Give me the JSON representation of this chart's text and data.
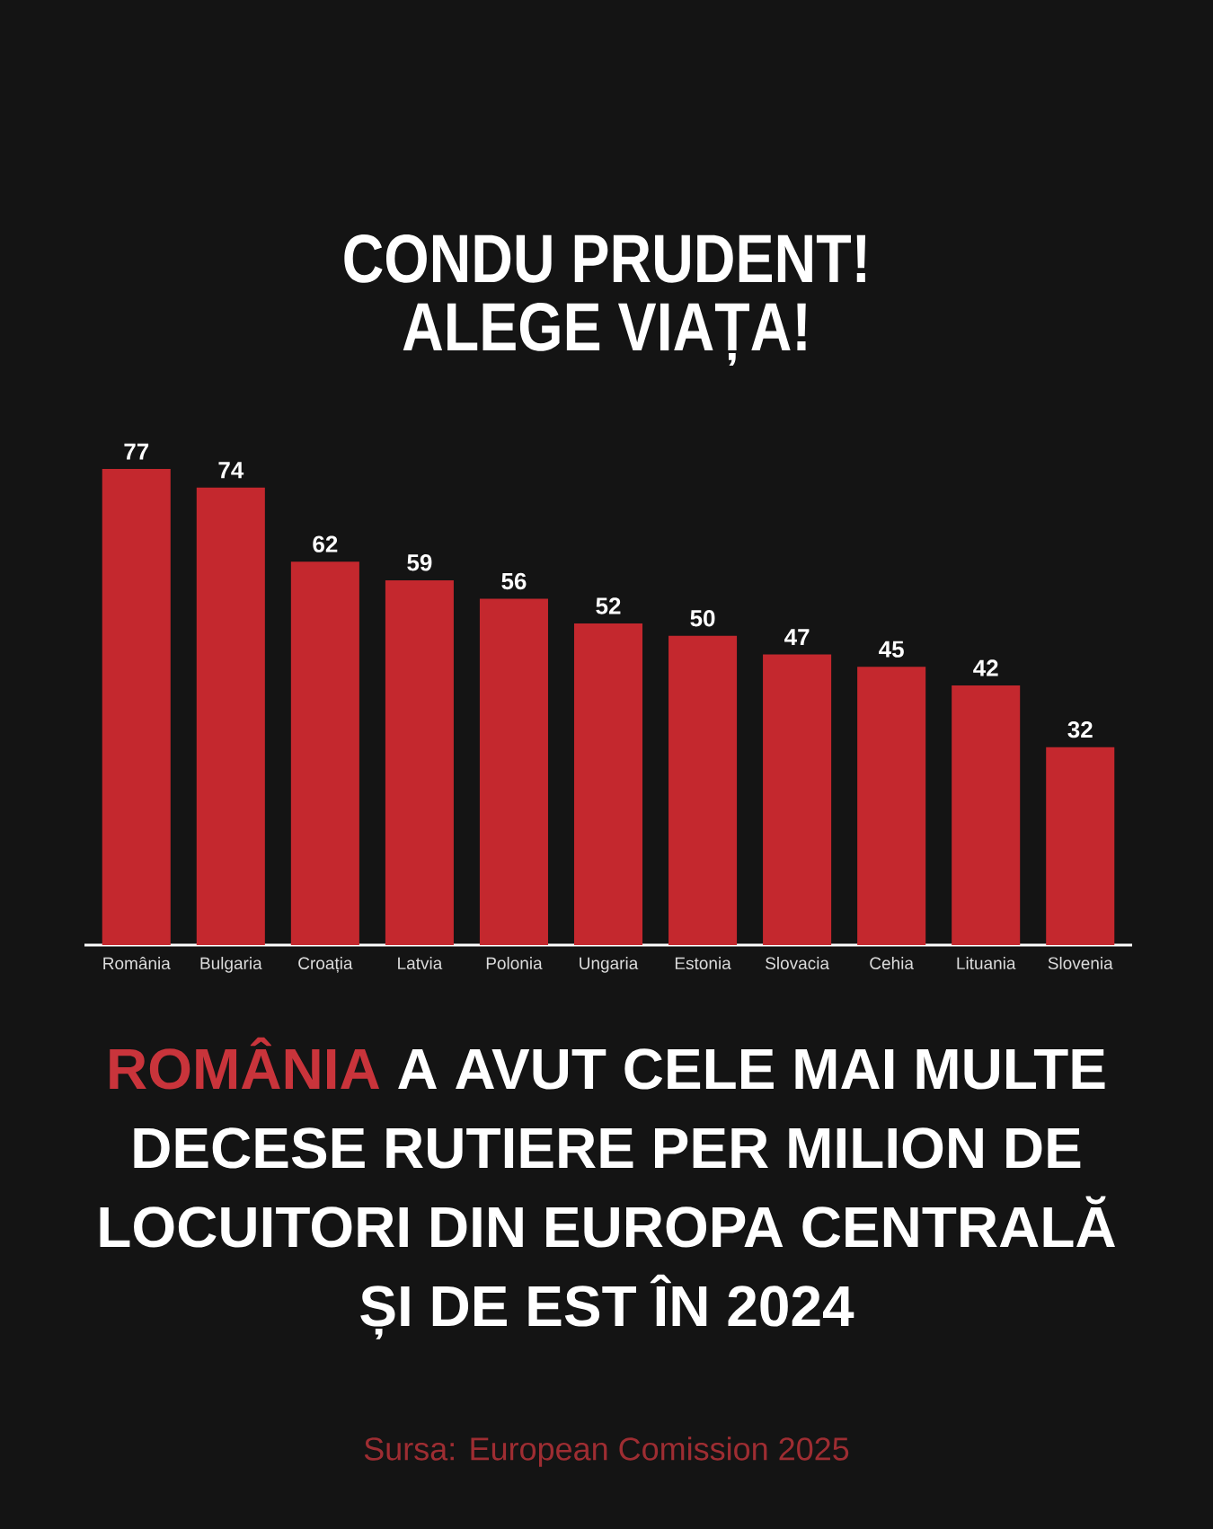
{
  "chart_data": {
    "type": "bar",
    "title": "CONDU PRUDENT! ALEGE VIAȚA!",
    "categories": [
      "România",
      "Bulgaria",
      "Croația",
      "Latvia",
      "Polonia",
      "Ungaria",
      "Estonia",
      "Slovacia",
      "Cehia",
      "Lituania",
      "Slovenia"
    ],
    "values": [
      77,
      74,
      62,
      59,
      56,
      52,
      50,
      47,
      45,
      42,
      32
    ],
    "color": "#c4282e",
    "data_labels": true,
    "annotations": [
      "ROMÂNIA",
      "A AVUT CELE MAI MULTE",
      "DECESE RUTIERE PER MILION DE LOCUITORI DIN EUROPA CENTRALĂ ȘI DE EST ÎN 2024",
      "Sursa: European Comission 2025"
    ]
  }
}
